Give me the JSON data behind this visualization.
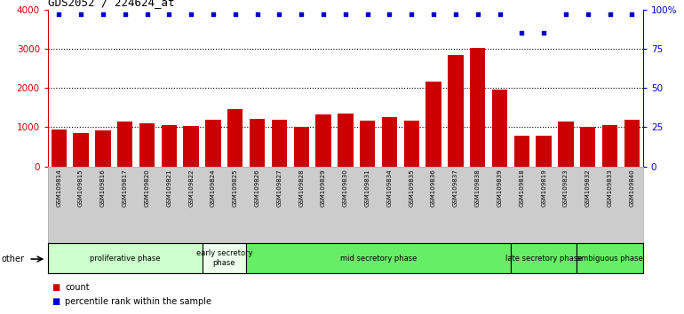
{
  "title": "GDS2052 / 224624_at",
  "samples": [
    "GSM109814",
    "GSM109815",
    "GSM109816",
    "GSM109817",
    "GSM109820",
    "GSM109821",
    "GSM109822",
    "GSM109824",
    "GSM109825",
    "GSM109826",
    "GSM109827",
    "GSM109828",
    "GSM109829",
    "GSM109830",
    "GSM109831",
    "GSM109834",
    "GSM109835",
    "GSM109836",
    "GSM109837",
    "GSM109838",
    "GSM109839",
    "GSM109818",
    "GSM109819",
    "GSM109823",
    "GSM109832",
    "GSM109833",
    "GSM109840"
  ],
  "counts": [
    950,
    850,
    920,
    1150,
    1100,
    1050,
    1020,
    1200,
    1450,
    1220,
    1200,
    1000,
    1330,
    1340,
    1170,
    1250,
    1160,
    2150,
    2850,
    3020,
    1950,
    780,
    780,
    1150,
    1000,
    1060,
    1200
  ],
  "percentile_ranks": [
    97,
    97,
    97,
    97,
    97,
    97,
    97,
    97,
    97,
    97,
    97,
    97,
    97,
    97,
    97,
    97,
    97,
    97,
    97,
    97,
    97,
    85,
    85,
    97,
    97,
    97,
    97
  ],
  "phases": [
    {
      "label": "proliferative phase",
      "start": 0,
      "end": 7,
      "color": "#ccffcc"
    },
    {
      "label": "early secretory\nphase",
      "start": 7,
      "end": 9,
      "color": "#eeffee"
    },
    {
      "label": "mid secretory phase",
      "start": 9,
      "end": 21,
      "color": "#66ee66"
    },
    {
      "label": "late secretory phase",
      "start": 21,
      "end": 24,
      "color": "#66ee66"
    },
    {
      "label": "ambiguous phase",
      "start": 24,
      "end": 27,
      "color": "#66ee66"
    }
  ],
  "bar_color": "#cc0000",
  "dot_color": "#0000cc",
  "ylim_left": [
    0,
    4000
  ],
  "ylim_right": [
    0,
    100
  ],
  "yticks_left": [
    0,
    1000,
    2000,
    3000,
    4000
  ],
  "yticks_right": [
    0,
    25,
    50,
    75,
    100
  ],
  "yticklabels_right": [
    "0",
    "25",
    "50",
    "75",
    "100%"
  ],
  "background_color": "#ffffff",
  "tick_area_color": "#cccccc",
  "other_label": "other"
}
